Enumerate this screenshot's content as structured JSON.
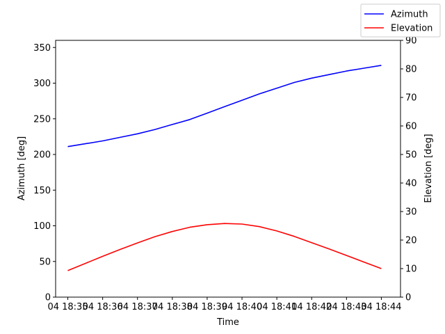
{
  "chart_data": {
    "type": "line",
    "xlabel": "Time",
    "ylabel_left": "Azimuth [deg]",
    "ylabel_right": "Elevation [deg]",
    "x_tick_labels": [
      "04 18:35",
      "04 18:36",
      "04 18:37",
      "04 18:38",
      "04 18:39",
      "04 18:40",
      "04 18:41",
      "04 18:42",
      "04 18:43",
      "04 18:44"
    ],
    "x_minutes": [
      0,
      0.5,
      1,
      1.5,
      2,
      2.5,
      3,
      3.5,
      4,
      4.5,
      5,
      5.5,
      6,
      6.5,
      7,
      7.5,
      8,
      8.5,
      9
    ],
    "xlim": [
      -0.35,
      9.55
    ],
    "left_axis": {
      "ylim": [
        0,
        360
      ],
      "ticks": [
        0,
        50,
        100,
        150,
        200,
        250,
        300,
        350
      ]
    },
    "right_axis": {
      "ylim": [
        0,
        90
      ],
      "ticks": [
        0,
        10,
        20,
        30,
        40,
        50,
        60,
        70,
        80,
        90
      ]
    },
    "grid": false,
    "legend_placement": "top-right",
    "series": [
      {
        "name": "Azimuth",
        "axis": "left",
        "color": "#0000ff",
        "values": [
          211,
          215,
          219,
          224,
          229,
          235,
          242,
          249,
          258,
          267,
          276,
          285,
          293,
          301,
          307,
          312,
          317,
          321,
          325
        ]
      },
      {
        "name": "Elevation",
        "axis": "right",
        "color": "#ff0000",
        "values": [
          9.3,
          11.8,
          14.3,
          16.7,
          19.0,
          21.2,
          23.0,
          24.5,
          25.4,
          25.8,
          25.6,
          24.7,
          23.2,
          21.3,
          19.1,
          16.9,
          14.6,
          12.3,
          10.0
        ]
      }
    ]
  }
}
